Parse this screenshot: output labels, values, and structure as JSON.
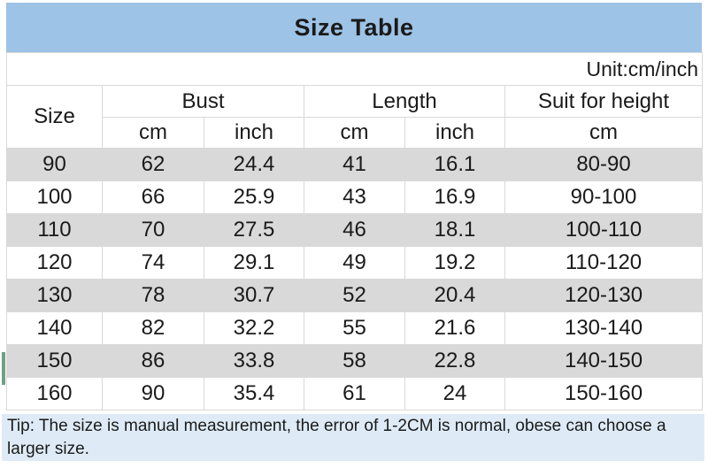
{
  "chart_data": {
    "type": "table",
    "title": "Size Table",
    "unit_label": "Unit:cm/inch",
    "headers": {
      "size": "Size",
      "bust": "Bust",
      "length": "Length",
      "suit_for_height": "Suit for height",
      "bust_cm": "cm",
      "bust_inch": "inch",
      "length_cm": "cm",
      "length_inch": "inch",
      "suit_cm": "cm"
    },
    "rows": [
      [
        "90",
        "62",
        "24.4",
        "41",
        "16.1",
        "80-90"
      ],
      [
        "100",
        "66",
        "25.9",
        "43",
        "16.9",
        "90-100"
      ],
      [
        "110",
        "70",
        "27.5",
        "46",
        "18.1",
        "100-110"
      ],
      [
        "120",
        "74",
        "29.1",
        "49",
        "19.2",
        "110-120"
      ],
      [
        "130",
        "78",
        "30.7",
        "52",
        "20.4",
        "120-130"
      ],
      [
        "140",
        "82",
        "32.2",
        "55",
        "21.6",
        "130-140"
      ],
      [
        "150",
        "86",
        "33.8",
        "58",
        "22.8",
        "140-150"
      ],
      [
        "160",
        "90",
        "35.4",
        "61",
        "24",
        "150-160"
      ]
    ],
    "tip": "Tip: The size is manual measurement, the error of 1-2CM is normal, obese can choose a larger size."
  },
  "colors": {
    "title_bg": "#9dc3e6",
    "row_alt_bg": "#d9d9d9",
    "tip_bg": "#deebf7",
    "border": "#d9d9d9",
    "text": "#1a1a1a",
    "edge_artifact_green": "#70a083"
  }
}
